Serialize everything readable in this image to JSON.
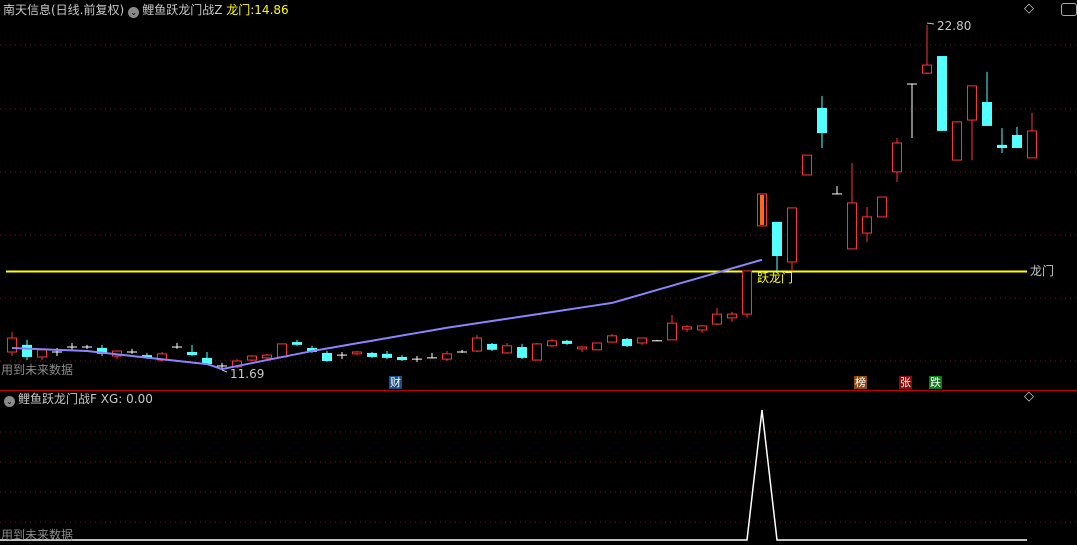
{
  "header": {
    "stock": "南天信息(日线.前复权)",
    "indicator": "鲤鱼跃龙门战Z",
    "longmen_label": "龙门:",
    "longmen_value": "14.86"
  },
  "sub_header": {
    "indicator": "鲤鱼跃龙门战F",
    "xg_label": "XG:",
    "xg_value": "0.00"
  },
  "labels": {
    "future_data_main": "用到未来数据",
    "future_data_sub": "用到未来数据",
    "low_price": "11.69",
    "high_price": "22.80",
    "longmen_line": "龙门",
    "leap_signal": "跃龙门"
  },
  "markers": [
    {
      "text": "财",
      "color": "#1a4f8a"
    },
    {
      "text": "榜",
      "color": "#8a4a10"
    },
    {
      "text": "张",
      "color": "#8a0a0a"
    },
    {
      "text": "跌",
      "color": "#0a7a1a"
    }
  ],
  "colors": {
    "up": "#ff3333",
    "down": "#54ffff",
    "doji": "#ffffff",
    "ma": "#8c84ff",
    "longmen": "#ffff00",
    "signal": "#ff6a1a",
    "separator": "#c00000"
  },
  "chart_data": {
    "type": "candlestick",
    "ylim": [
      11.69,
      22.8
    ],
    "longmen": 14.86,
    "candles_ohlc": [
      [
        12.27,
        12.91,
        12.14,
        12.72
      ],
      [
        12.5,
        12.66,
        12.01,
        12.11
      ],
      [
        12.11,
        12.34,
        12.01,
        12.34
      ],
      [
        12.27,
        12.4,
        12.14,
        12.27
      ],
      [
        12.43,
        12.56,
        12.34,
        12.43
      ],
      [
        12.43,
        12.5,
        12.37,
        12.43
      ],
      [
        12.4,
        12.5,
        12.14,
        12.21
      ],
      [
        12.14,
        12.3,
        12.05,
        12.3
      ],
      [
        12.27,
        12.37,
        12.21,
        12.27
      ],
      [
        12.17,
        12.24,
        12.05,
        12.08
      ],
      [
        12.01,
        12.27,
        11.95,
        12.21
      ],
      [
        12.43,
        12.56,
        12.37,
        12.43
      ],
      [
        12.27,
        12.5,
        12.14,
        12.17
      ],
      [
        12.08,
        12.27,
        11.88,
        11.88
      ],
      [
        11.82,
        11.92,
        11.69,
        11.82
      ],
      [
        11.79,
        12.04,
        11.75,
        11.98
      ],
      [
        12.01,
        12.17,
        11.98,
        12.14
      ],
      [
        12.08,
        12.21,
        12.04,
        12.17
      ],
      [
        12.11,
        12.53,
        12.11,
        12.53
      ],
      [
        12.59,
        12.66,
        12.47,
        12.5
      ],
      [
        12.4,
        12.47,
        12.24,
        12.27
      ],
      [
        12.24,
        12.3,
        11.95,
        11.98
      ],
      [
        12.17,
        12.27,
        12.04,
        12.17
      ],
      [
        12.21,
        12.3,
        12.17,
        12.27
      ],
      [
        12.24,
        12.27,
        12.08,
        12.11
      ],
      [
        12.21,
        12.3,
        12.04,
        12.08
      ],
      [
        12.11,
        12.17,
        11.98,
        12.01
      ],
      [
        12.04,
        12.14,
        11.95,
        12.04
      ],
      [
        12.08,
        12.24,
        12.08,
        12.08
      ],
      [
        12.04,
        12.3,
        11.98,
        12.21
      ],
      [
        12.27,
        12.34,
        12.24,
        12.27
      ],
      [
        12.3,
        12.82,
        12.27,
        12.72
      ],
      [
        12.53,
        12.56,
        12.3,
        12.34
      ],
      [
        12.24,
        12.56,
        12.21,
        12.47
      ],
      [
        12.43,
        12.53,
        12.04,
        12.08
      ],
      [
        12.01,
        12.56,
        12.01,
        12.53
      ],
      [
        12.47,
        12.69,
        12.43,
        12.63
      ],
      [
        12.63,
        12.66,
        12.5,
        12.53
      ],
      [
        12.37,
        12.46,
        12.27,
        12.43
      ],
      [
        12.34,
        12.56,
        12.34,
        12.56
      ],
      [
        12.59,
        12.85,
        12.59,
        12.79
      ],
      [
        12.69,
        12.72,
        12.43,
        12.46
      ],
      [
        12.56,
        12.72,
        12.5,
        12.72
      ],
      [
        12.63,
        12.66,
        12.63,
        12.63
      ],
      [
        12.66,
        13.46,
        12.66,
        13.2
      ],
      [
        13.01,
        13.14,
        12.92,
        13.08
      ],
      [
        12.98,
        13.14,
        12.89,
        13.11
      ],
      [
        13.17,
        13.69,
        13.14,
        13.49
      ],
      [
        13.37,
        13.56,
        13.24,
        13.49
      ],
      [
        13.49,
        14.88,
        13.37,
        14.88
      ],
      [
        16.33,
        17.36,
        16.33,
        17.36
      ],
      [
        16.46,
        16.46,
        14.88,
        15.36
      ],
      [
        15.17,
        16.91,
        14.88,
        16.91
      ],
      [
        17.97,
        18.61,
        17.97,
        18.61
      ],
      [
        20.13,
        20.51,
        18.84,
        19.32
      ],
      [
        17.36,
        17.61,
        17.36,
        17.36
      ],
      [
        15.59,
        18.36,
        15.59,
        17.07
      ],
      [
        16.1,
        16.94,
        15.81,
        16.62
      ],
      [
        16.62,
        17.26,
        16.62,
        17.26
      ],
      [
        18.07,
        19.16,
        17.75,
        19.0
      ],
      [
        20.9,
        20.9,
        19.16,
        20.9
      ],
      [
        21.25,
        22.8,
        21.22,
        21.51
      ],
      [
        21.8,
        21.8,
        19.39,
        19.39
      ],
      [
        18.45,
        19.68,
        18.45,
        19.68
      ],
      [
        19.74,
        20.84,
        18.45,
        20.84
      ],
      [
        20.32,
        21.29,
        19.55,
        19.55
      ],
      [
        18.94,
        19.48,
        18.68,
        18.84
      ],
      [
        19.26,
        19.52,
        18.84,
        18.84
      ],
      [
        18.52,
        19.97,
        18.52,
        19.39
      ]
    ],
    "signal_candle": 50,
    "ma_keypoints": [
      [
        0,
        12.4
      ],
      [
        5,
        12.3
      ],
      [
        13,
        11.88
      ],
      [
        14,
        11.72
      ],
      [
        20,
        12.3
      ],
      [
        29,
        13.05
      ],
      [
        40,
        13.85
      ],
      [
        50,
        15.24
      ]
    ],
    "xg": {
      "ylim": [
        0,
        1
      ],
      "spike_index": 51,
      "spike_value": 1
    }
  }
}
